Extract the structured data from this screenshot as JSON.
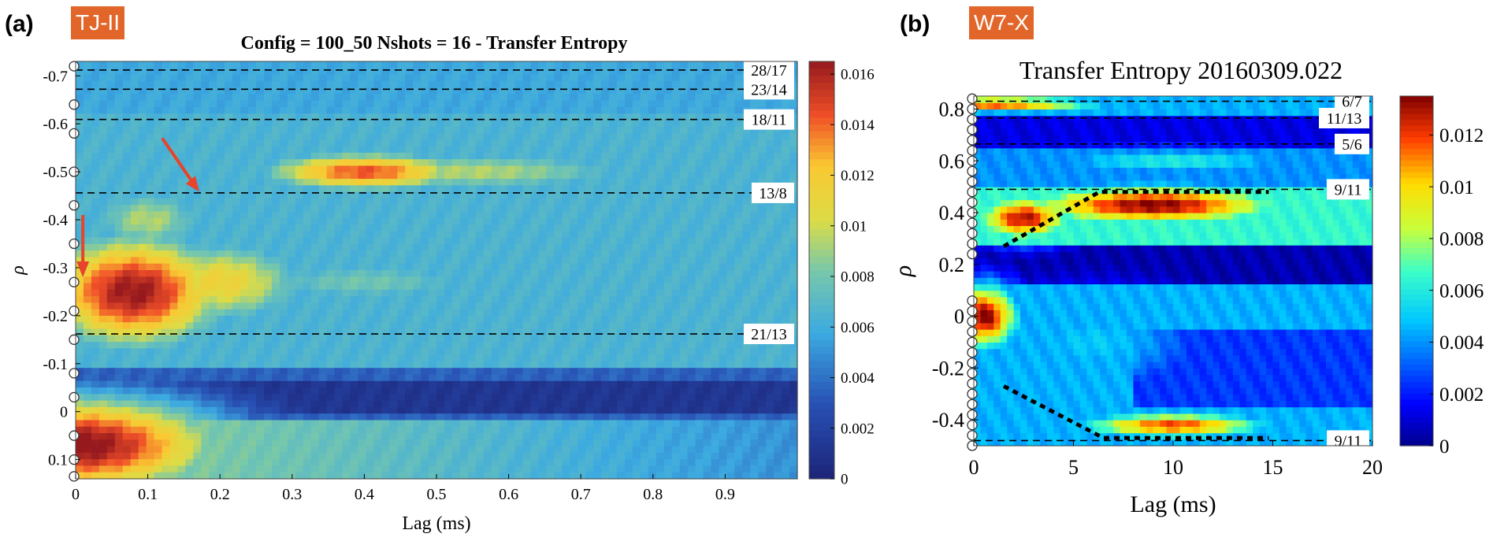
{
  "panel_a": {
    "letter": "(a)",
    "device": "TJ-II",
    "device_color": "#e2662a"
  },
  "panel_b": {
    "letter": "(b)",
    "device": "W7-X",
    "device_color": "#e2662a"
  },
  "chart_data": [
    {
      "type": "heatmap",
      "title": "Config = 100_50 Nshots = 16 - Transfer Entropy",
      "xlabel": "Lag (ms)",
      "ylabel": "ρ",
      "xlim": [
        0,
        1.0
      ],
      "ylim": [
        -0.73,
        0.14
      ],
      "y_inverted": true,
      "x_ticks": [
        "0",
        "0.1",
        "0.2",
        "0.3",
        "0.4",
        "0.5",
        "0.6",
        "0.7",
        "0.8",
        "0.9"
      ],
      "x_tick_values": [
        0,
        0.1,
        0.2,
        0.3,
        0.4,
        0.5,
        0.6,
        0.7,
        0.8,
        0.9
      ],
      "y_ticks": [
        "-0.7",
        "-0.6",
        "-0.5",
        "-0.4",
        "-0.3",
        "-0.2",
        "-0.1",
        "0",
        "0.1"
      ],
      "y_tick_values": [
        -0.7,
        -0.6,
        -0.5,
        -0.4,
        -0.3,
        -0.2,
        -0.1,
        0,
        0.1
      ],
      "colorbar": {
        "min": 0,
        "max": 0.0165,
        "ticks": [
          "0",
          "0.002",
          "0.004",
          "0.006",
          "0.008",
          "0.01",
          "0.012",
          "0.014",
          "0.016"
        ],
        "tick_values": [
          0,
          0.002,
          0.004,
          0.006,
          0.008,
          0.01,
          0.012,
          0.014,
          0.016
        ]
      },
      "rational_surfaces": [
        {
          "label": "28/17",
          "rho": -0.712
        },
        {
          "label": "23/14",
          "rho": -0.672
        },
        {
          "label": "18/11",
          "rho": -0.609
        },
        {
          "label": "13/8",
          "rho": -0.456
        },
        {
          "label": "21/13",
          "rho": -0.162
        }
      ],
      "blobs": [
        {
          "lag": 0.0,
          "rho": 0.07,
          "w": 0.22,
          "h": 0.11,
          "v": 0.017
        },
        {
          "lag": 0.08,
          "rho": -0.25,
          "w": 0.14,
          "h": 0.13,
          "v": 0.0165
        },
        {
          "lag": 0.2,
          "rho": -0.27,
          "w": 0.14,
          "h": 0.1,
          "v": 0.0115
        },
        {
          "lag": 0.4,
          "rho": -0.5,
          "w": 0.16,
          "h": 0.045,
          "v": 0.0145
        },
        {
          "lag": 0.4,
          "rho": -0.27,
          "w": 0.25,
          "h": 0.06,
          "v": 0.008
        },
        {
          "lag": 0.55,
          "rho": -0.5,
          "w": 0.3,
          "h": 0.05,
          "v": 0.0095
        },
        {
          "lag": 0.1,
          "rho": -0.4,
          "w": 0.1,
          "h": 0.08,
          "v": 0.0095
        },
        {
          "lag": 0.7,
          "rho": -0.28,
          "w": 0.2,
          "h": 0.1,
          "v": 0.0065
        }
      ],
      "annotations": [
        "red arrow at lag 0.0 pointing to rho -0.28",
        "red arrow at lag 0.17 pointing to rho -0.45"
      ]
    },
    {
      "type": "heatmap",
      "title": "Transfer Entropy 20160309.022",
      "xlabel": "Lag (ms)",
      "ylabel": "ρ",
      "xlim": [
        0,
        20
      ],
      "ylim": [
        -0.5,
        0.85
      ],
      "y_inverted": false,
      "x_ticks": [
        "0",
        "5",
        "10",
        "15",
        "20"
      ],
      "x_tick_values": [
        0,
        5,
        10,
        15,
        20
      ],
      "y_ticks": [
        "0.8",
        "0.6",
        "0.4",
        "0.2",
        "0",
        "-0.2",
        "-0.4"
      ],
      "y_tick_values": [
        0.8,
        0.6,
        0.4,
        0.2,
        0,
        -0.2,
        -0.4
      ],
      "colorbar": {
        "min": 0,
        "max": 0.0135,
        "ticks": [
          "0",
          "0.002",
          "0.004",
          "0.006",
          "0.008",
          "0.01",
          "0.012"
        ],
        "tick_values": [
          0,
          0.002,
          0.004,
          0.006,
          0.008,
          0.01,
          0.012
        ]
      },
      "rational_surfaces": [
        {
          "label": "6/7",
          "rho": 0.83
        },
        {
          "label": "11/13",
          "rho": 0.765
        },
        {
          "label": "5/6",
          "rho": 0.665
        },
        {
          "label": "9/11",
          "rho": 0.49
        },
        {
          "label": "9/11",
          "rho": -0.48
        }
      ],
      "blobs": [
        {
          "lag": 9,
          "rho": 0.43,
          "w": 7.0,
          "h": 0.08,
          "v": 0.0135
        },
        {
          "lag": 2.5,
          "rho": 0.38,
          "w": 2.5,
          "h": 0.09,
          "v": 0.013
        },
        {
          "lag": 0.5,
          "rho": 0.0,
          "w": 1.8,
          "h": 0.13,
          "v": 0.0135
        },
        {
          "lag": 10,
          "rho": -0.42,
          "w": 5.0,
          "h": 0.05,
          "v": 0.012
        },
        {
          "lag": 0.8,
          "rho": 0.82,
          "w": 6.0,
          "h": 0.03,
          "v": 0.012
        },
        {
          "lag": 10,
          "rho": 0.6,
          "w": 8.0,
          "h": 0.06,
          "v": 0.006
        },
        {
          "lag": 6,
          "rho": -0.1,
          "w": 6.0,
          "h": 0.2,
          "v": 0.005
        }
      ],
      "dotted_paths": [
        {
          "lag": [
            1.5,
            6.3,
            14.8
          ],
          "rho": [
            0.27,
            0.48,
            0.48
          ]
        },
        {
          "lag": [
            1.5,
            6.5,
            14.8
          ],
          "rho": [
            -0.27,
            -0.47,
            -0.47
          ]
        }
      ]
    }
  ]
}
